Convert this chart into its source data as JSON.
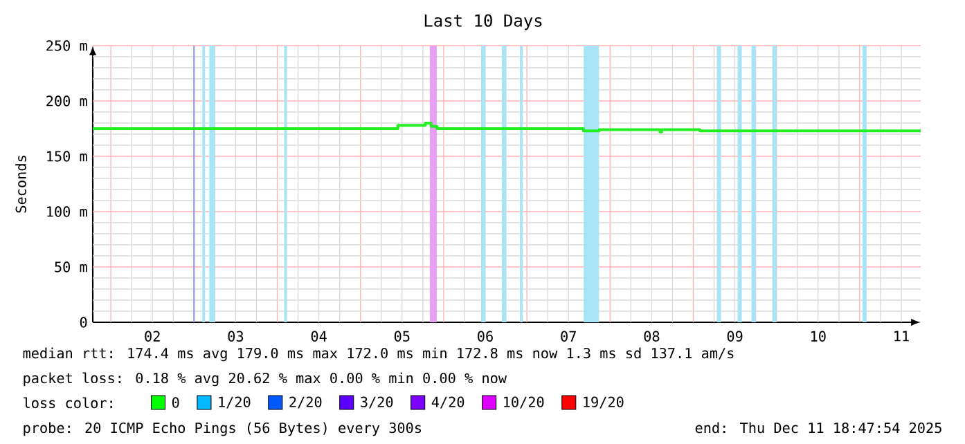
{
  "chart_data": {
    "type": "step",
    "title": "Last 10 Days",
    "ylabel": "Seconds",
    "xlim": [
      1.783,
      11.733
    ],
    "xticks": [
      {
        "value": 2.5,
        "label": "02"
      },
      {
        "value": 3.5,
        "label": "03"
      },
      {
        "value": 4.5,
        "label": "04"
      },
      {
        "value": 5.5,
        "label": "05"
      },
      {
        "value": 6.5,
        "label": "06"
      },
      {
        "value": 7.5,
        "label": "07"
      },
      {
        "value": 8.5,
        "label": "08"
      },
      {
        "value": 9.5,
        "label": "09"
      },
      {
        "value": 10.5,
        "label": "10"
      },
      {
        "value": 11.5,
        "label": "11"
      }
    ],
    "ylim": [
      0,
      250
    ],
    "yticks": [
      0,
      {
        "value": 50,
        "label": "50 m"
      },
      {
        "value": 100,
        "label": "100 m"
      },
      {
        "value": 150,
        "label": "150 m"
      },
      {
        "value": 200,
        "label": "200 m"
      },
      {
        "value": 250,
        "label": "250 m"
      }
    ],
    "grid": true,
    "legend": "bottom",
    "series": [
      {
        "color": "#22ee22",
        "x": [
          1.783,
          5.45,
          5.78,
          5.85,
          5.92,
          7.68,
          7.87,
          8.6,
          8.62,
          9.08,
          11.733
        ],
        "values": [
          175,
          178,
          180,
          177,
          175,
          173,
          174,
          172,
          174,
          173,
          173
        ]
      },
      {
        "name": "0",
        "color": "#00ff00"
      },
      {
        "name": "1/20",
        "color": "#00b8ff"
      },
      {
        "name": "2/20",
        "color": "#0059ff"
      },
      {
        "name": "3/20",
        "color": "#5e00ff"
      },
      {
        "name": "4/20",
        "color": "#7e00ff"
      },
      {
        "name": "10/20",
        "color": "#dd00ff"
      },
      {
        "name": "19/20",
        "color": "#ff0000"
      }
    ],
    "bands": [
      {
        "axis": "x",
        "from": 2.99,
        "to": 3.01,
        "color": "#a0a0e8"
      },
      {
        "axis": "x",
        "from": 3.1,
        "to": 3.133,
        "color": "#a8e4f8"
      },
      {
        "axis": "x",
        "from": 3.183,
        "to": 3.25,
        "color": "#a8e4f8"
      },
      {
        "axis": "x",
        "from": 4.083,
        "to": 4.117,
        "color": "#a8e4f8"
      },
      {
        "axis": "x",
        "from": 5.833,
        "to": 5.917,
        "color": "#e8a0f4"
      },
      {
        "axis": "x",
        "from": 6.45,
        "to": 6.5,
        "color": "#a8e4f8"
      },
      {
        "axis": "x",
        "from": 6.7,
        "to": 6.75,
        "color": "#a8e4f8"
      },
      {
        "axis": "x",
        "from": 6.917,
        "to": 6.95,
        "color": "#a8e4f8"
      },
      {
        "axis": "x",
        "from": 7.683,
        "to": 7.867,
        "color": "#a8e4f8"
      },
      {
        "axis": "x",
        "from": 9.283,
        "to": 9.333,
        "color": "#a8e4f8"
      },
      {
        "axis": "x",
        "from": 9.533,
        "to": 9.583,
        "color": "#a8e4f8"
      },
      {
        "axis": "x",
        "from": 9.7,
        "to": 9.75,
        "color": "#a8e4f8"
      },
      {
        "axis": "x",
        "from": 9.95,
        "to": 10.0,
        "color": "#a8e4f8"
      },
      {
        "axis": "x",
        "from": 11.033,
        "to": 11.083,
        "color": "#a8e4f8"
      }
    ],
    "annotations": [
      "median rtt: 174.4 ms avg 179.0 ms max 172.0 ms min 172.8 ms now 1.3 ms sd 137.1 am/s",
      "packet loss: 0.18 % avg 20.62 % max 0.00 % min 0.00 % now",
      "loss color:",
      "probe: 20 ICMP Echo Pings (56 Bytes) every 300s",
      "end: Thu Dec 11 18:47:54 2025"
    ]
  }
}
